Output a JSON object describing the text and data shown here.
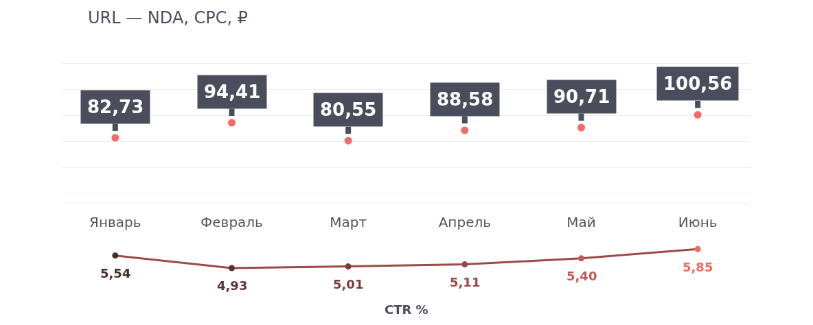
{
  "chart_data": [
    {
      "type": "scatter",
      "title": "URL — NDA, CPC, ₽",
      "categories": [
        "Январь",
        "Февраль",
        "Март",
        "Апрель",
        "Май",
        "Июнь"
      ],
      "series": [
        {
          "color": "#f26b64",
          "values": [
            82.73,
            94.41,
            80.55,
            88.58,
            90.71,
            100.56
          ],
          "value_labels": [
            "82,73",
            "94,41",
            "80,55",
            "88,58",
            "90,71",
            "100,56"
          ]
        }
      ],
      "grid": "y",
      "tick_labels": "x",
      "marker": "circle"
    },
    {
      "type": "line",
      "xlabel": "CTR %",
      "categories": [
        null,
        null,
        null,
        null,
        null,
        null
      ],
      "series": [
        {
          "color": "#9b4a45",
          "colors": [
            "#4a2b2b",
            "#5e3030",
            "#7a3a38",
            "#9b4845",
            "#c45a53",
            "#ee6b60"
          ],
          "values": [
            5.54,
            4.93,
            5.01,
            5.11,
            5.4,
            5.85
          ],
          "value_labels": [
            "5,54",
            "4,93",
            "5,01",
            "5,11",
            "5,40",
            "5,85"
          ]
        }
      ],
      "tick_labels": false,
      "marker": "circle",
      "line_style": "solid"
    }
  ]
}
